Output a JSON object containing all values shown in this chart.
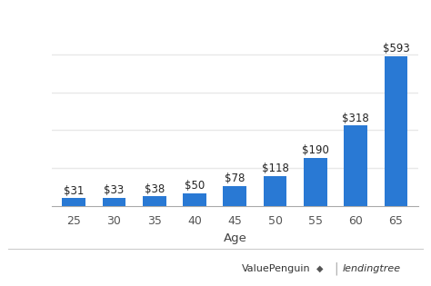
{
  "categories": [
    "25",
    "30",
    "35",
    "40",
    "45",
    "50",
    "55",
    "60",
    "65"
  ],
  "values": [
    31,
    33,
    38,
    50,
    78,
    118,
    190,
    318,
    593
  ],
  "labels": [
    "$31",
    "$33",
    "$38",
    "$50",
    "$78",
    "$118",
    "$190",
    "$318",
    "$593"
  ],
  "bar_color": "#2979d4",
  "xlabel": "Age",
  "ylim": [
    0,
    680
  ],
  "background_color": "#ffffff",
  "grid_color": "#e8e8e8",
  "label_fontsize": 8.5,
  "axis_label_fontsize": 9.5,
  "tick_fontsize": 9,
  "bar_width": 0.58,
  "watermark_vp": "ValuePenguin",
  "watermark_lt": "lendingtree",
  "watermark_color": "#444444"
}
